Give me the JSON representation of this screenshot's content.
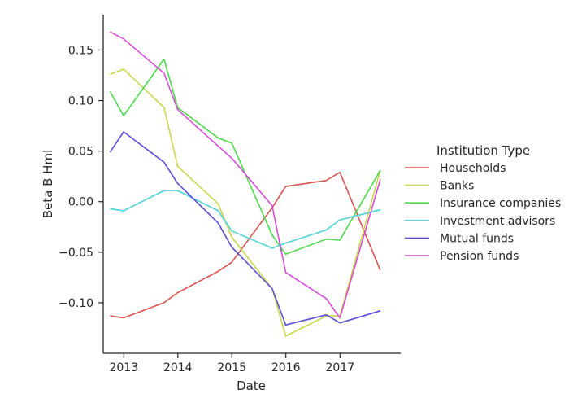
{
  "chart_data": {
    "type": "line",
    "title": "",
    "xlabel": "Date",
    "ylabel": "Beta B Hml",
    "legend_title": "Institution Type",
    "legend_position": "right",
    "grid": false,
    "xlim": [
      "2012-08-15",
      "2018-02-15"
    ],
    "ylim": [
      -0.15,
      0.185
    ],
    "x_ticks": [
      "2013",
      "2014",
      "2015",
      "2016",
      "2017"
    ],
    "x_tick_dates": [
      "2013-01-01",
      "2014-01-01",
      "2015-01-01",
      "2016-01-01",
      "2017-01-01"
    ],
    "y_ticks": [
      0.15,
      0.1,
      0.05,
      0.0,
      -0.05,
      -0.1
    ],
    "y_tick_labels": [
      "0.15",
      "0.10",
      "0.05",
      "0.00",
      "−0.05",
      "−0.10"
    ],
    "x": [
      "2012-09-30",
      "2012-12-31",
      "2013-09-30",
      "2013-12-31",
      "2014-09-30",
      "2014-12-31",
      "2015-09-30",
      "2015-12-31",
      "2016-09-30",
      "2016-12-31",
      "2017-09-30"
    ],
    "series": [
      {
        "name": "Households",
        "color": "#d9534f",
        "values": [
          -0.113,
          -0.115,
          -0.1,
          -0.09,
          -0.069,
          -0.06,
          -0.006,
          0.015,
          0.021,
          0.029,
          -0.068
        ]
      },
      {
        "name": "Banks",
        "color": "#c9d64a",
        "values": [
          0.126,
          0.131,
          0.093,
          0.035,
          -0.002,
          -0.035,
          -0.086,
          -0.133,
          -0.113,
          -0.113,
          0.031
        ]
      },
      {
        "name": "Insurance companies",
        "color": "#4cd94c",
        "values": [
          0.109,
          0.085,
          0.141,
          0.093,
          0.063,
          0.058,
          -0.033,
          -0.052,
          -0.037,
          -0.038,
          0.031
        ]
      },
      {
        "name": "Investment advisors",
        "color": "#4dd3d6",
        "values": [
          -0.007,
          -0.009,
          0.011,
          0.011,
          -0.009,
          -0.029,
          -0.046,
          -0.041,
          -0.028,
          -0.018,
          -0.008
        ]
      },
      {
        "name": "Mutual funds",
        "color": "#5b4fd6",
        "values": [
          0.049,
          0.069,
          0.039,
          0.018,
          -0.021,
          -0.045,
          -0.086,
          -0.122,
          -0.112,
          -0.12,
          -0.108
        ]
      },
      {
        "name": "Pension funds",
        "color": "#d64fd6",
        "values": [
          0.168,
          0.161,
          0.127,
          0.091,
          0.055,
          0.043,
          -0.004,
          -0.07,
          -0.096,
          -0.115,
          0.022
        ]
      }
    ]
  }
}
